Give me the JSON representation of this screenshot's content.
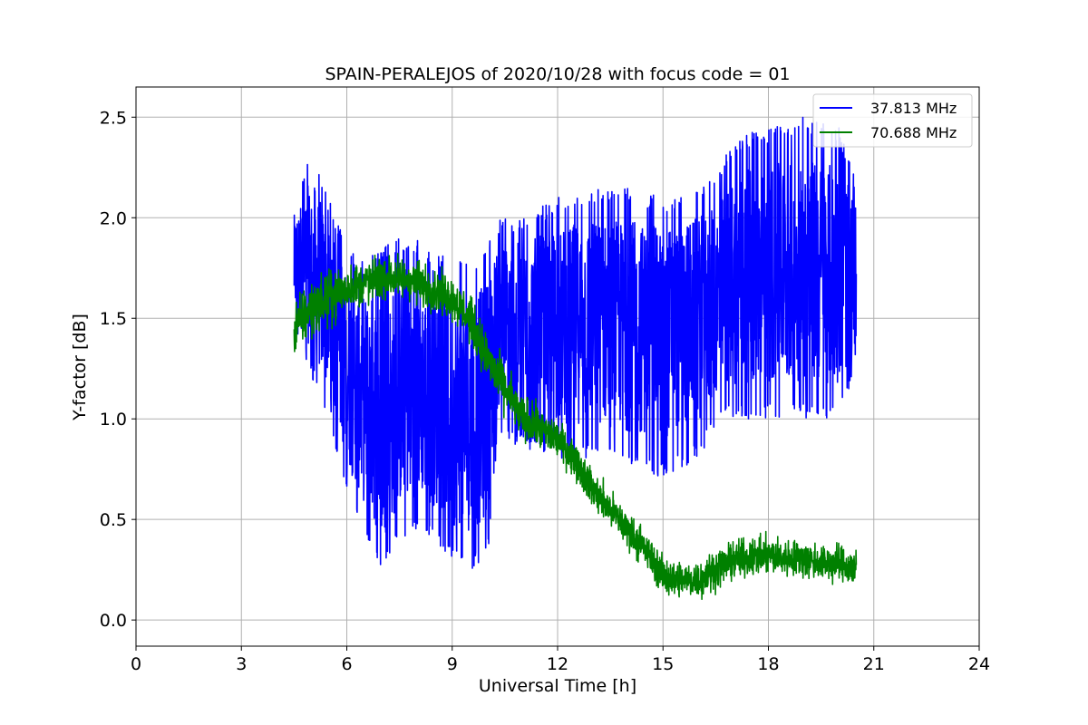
{
  "chart_data": {
    "type": "line",
    "title": "SPAIN-PERALEJOS of 2020/10/28 with focus code = 01",
    "xlabel": "Universal Time [h]",
    "ylabel": "Y-factor [dB]",
    "xlim": [
      0,
      24
    ],
    "ylim": [
      -0.13,
      2.65
    ],
    "xticks": [
      0,
      3,
      6,
      9,
      12,
      15,
      18,
      21,
      24
    ],
    "xtick_labels": [
      "0",
      "3",
      "6",
      "9",
      "12",
      "15",
      "18",
      "21",
      "24"
    ],
    "yticks": [
      0.0,
      0.5,
      1.0,
      1.5,
      2.0,
      2.5
    ],
    "ytick_labels": [
      "0.0",
      "0.5",
      "1.0",
      "1.5",
      "2.0",
      "2.5"
    ],
    "grid": true,
    "legend_position": "top-right",
    "series": [
      {
        "name": "37.813 MHz",
        "color": "#0000ff",
        "x_range": [
          4.5,
          20.5
        ],
        "envelope": {
          "x": [
            4.5,
            5.0,
            5.5,
            6.0,
            6.5,
            7.0,
            7.5,
            8.0,
            8.5,
            9.0,
            9.5,
            10.0,
            10.3,
            11.0,
            12.0,
            13.0,
            14.0,
            15.0,
            16.0,
            16.5,
            17.0,
            18.0,
            19.0,
            20.0,
            20.5
          ],
          "mean": [
            1.75,
            1.75,
            1.55,
            1.3,
            1.1,
            0.95,
            1.05,
            1.15,
            1.05,
            1.0,
            1.0,
            1.1,
            1.5,
            1.5,
            1.5,
            1.5,
            1.5,
            1.5,
            1.55,
            1.6,
            1.7,
            1.7,
            1.7,
            1.7,
            1.7
          ],
          "min": [
            1.45,
            1.2,
            1.0,
            0.6,
            0.4,
            0.22,
            0.4,
            0.45,
            0.4,
            0.3,
            0.25,
            0.3,
            0.9,
            0.85,
            0.8,
            0.8,
            0.75,
            0.7,
            0.8,
            0.95,
            1.0,
            1.0,
            1.0,
            1.0,
            1.2
          ],
          "max": [
            2.1,
            2.35,
            2.1,
            1.85,
            1.8,
            1.85,
            1.9,
            1.9,
            1.8,
            1.85,
            1.75,
            1.9,
            2.0,
            2.0,
            2.1,
            2.15,
            2.15,
            2.1,
            2.15,
            2.2,
            2.4,
            2.45,
            2.5,
            2.45,
            2.2
          ]
        }
      },
      {
        "name": "70.688 MHz",
        "color": "#008000",
        "x_range": [
          4.5,
          20.5
        ],
        "envelope": {
          "x": [
            4.5,
            5.0,
            6.0,
            7.0,
            7.5,
            8.0,
            9.0,
            9.5,
            10.0,
            10.5,
            11.0,
            12.0,
            12.5,
            13.0,
            13.5,
            14.0,
            14.5,
            15.0,
            15.5,
            16.0,
            16.5,
            17.0,
            18.0,
            19.0,
            20.0,
            20.5
          ],
          "mean": [
            1.45,
            1.55,
            1.65,
            1.7,
            1.7,
            1.68,
            1.6,
            1.5,
            1.3,
            1.15,
            1.0,
            0.9,
            0.8,
            0.65,
            0.55,
            0.45,
            0.35,
            0.22,
            0.2,
            0.2,
            0.25,
            0.3,
            0.32,
            0.3,
            0.28,
            0.25
          ],
          "noise": [
            0.12,
            0.12,
            0.1,
            0.09,
            0.09,
            0.09,
            0.09,
            0.1,
            0.1,
            0.1,
            0.1,
            0.08,
            0.08,
            0.08,
            0.08,
            0.08,
            0.08,
            0.08,
            0.08,
            0.08,
            0.08,
            0.08,
            0.08,
            0.08,
            0.08,
            0.08
          ]
        }
      }
    ]
  }
}
